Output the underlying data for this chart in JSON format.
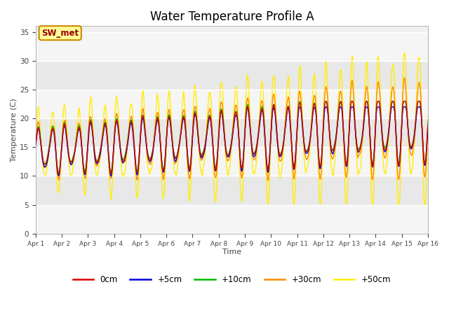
{
  "title": "Water Temperature Profile A",
  "xlabel": "Time",
  "ylabel": "Temperature (C)",
  "ylim": [
    0,
    36
  ],
  "yticks": [
    0,
    5,
    10,
    15,
    20,
    25,
    30,
    35
  ],
  "fig_bg_color": "#ffffff",
  "plot_bg_color": "#f0f0f0",
  "line_colors": {
    "0cm": "#dd0000",
    "+5cm": "#0000dd",
    "+10cm": "#00bb00",
    "+30cm": "#ff8800",
    "+50cm": "#ffee00"
  },
  "annotation_text": "SW_met",
  "annotation_color": "#990000",
  "annotation_bg": "#ffff99",
  "annotation_border": "#cc8800",
  "x_tick_labels": [
    "Apr 1",
    "Apr 2",
    "Apr 3",
    "Apr 4",
    "Apr 5",
    "Apr 6",
    "Apr 7",
    "Apr 8",
    "Apr 9",
    "Apr 10",
    "Apr 11",
    "Apr 12",
    "Apr 13",
    "Apr 14",
    "Apr 15",
    "Apr 16"
  ],
  "n_days": 15,
  "pts_per_day": 48
}
